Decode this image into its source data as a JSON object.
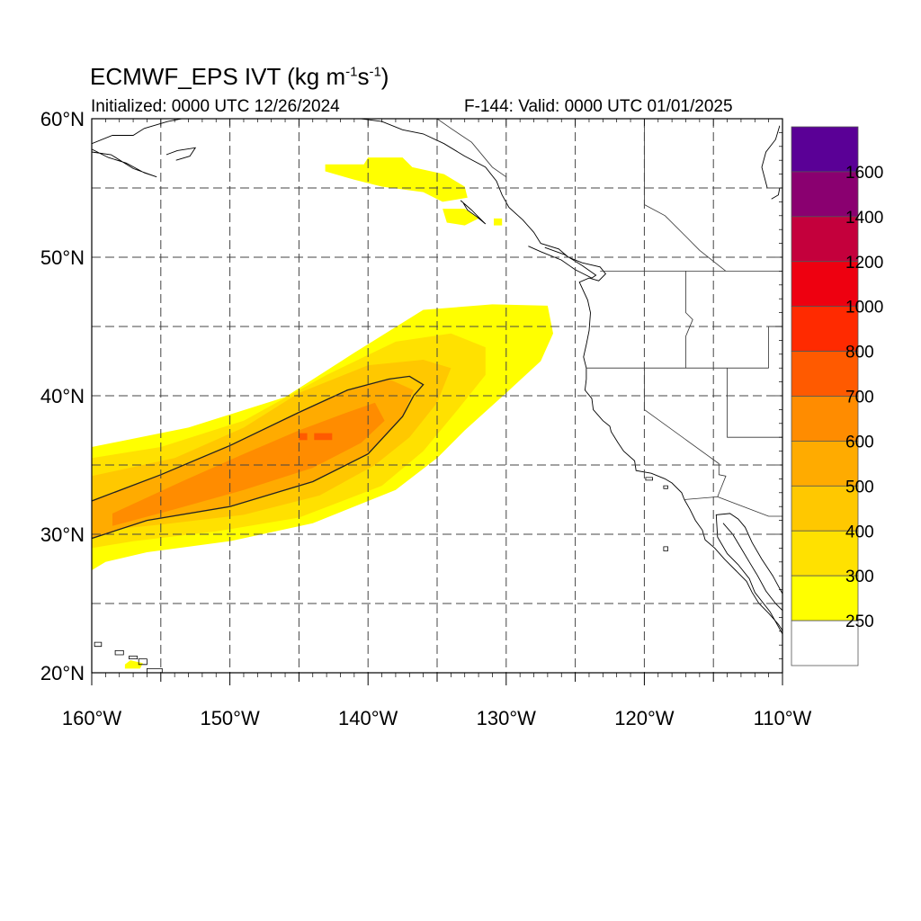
{
  "title": {
    "main": "ECMWF_EPS IVT (kg m",
    "unit_exp1": "-1",
    "unit_mid": "s",
    "unit_exp2": "-1",
    "unit_end": ")"
  },
  "subtitle_left": "Initialized: 0000 UTC 12/26/2024",
  "subtitle_right": "F-144: Valid: 0000 UTC 01/01/2025",
  "map": {
    "lon_range": [
      -160,
      -110
    ],
    "lat_range": [
      20,
      60
    ],
    "lon_tick_labels": [
      "160°W",
      "150°W",
      "140°W",
      "130°W",
      "120°W",
      "110°W"
    ],
    "lat_tick_labels": [
      "20°N",
      "30°N",
      "40°N",
      "50°N",
      "60°N"
    ],
    "grid_style": "dashed",
    "contour_level": 500
  },
  "colorbar": {
    "labels": [
      "250",
      "300",
      "400",
      "500",
      "600",
      "700",
      "800",
      "1000",
      "1200",
      "1400",
      "1600"
    ],
    "colors": [
      "#ffffff",
      "#ffff00",
      "#ffe100",
      "#ffc800",
      "#ffab00",
      "#ff8c00",
      "#ff5a00",
      "#ff2a00",
      "#ee0010",
      "#c4003c",
      "#8a0070",
      "#5a0096"
    ]
  },
  "ivt_plumes": [
    {
      "level": 250,
      "color": "#ffff00",
      "outline": [
        [
          -160,
          36.3
        ],
        [
          -153,
          37.7
        ],
        [
          -146,
          39.9
        ],
        [
          -141,
          43.1
        ],
        [
          -136,
          46.2
        ],
        [
          -131,
          46.6
        ],
        [
          -127,
          46.5
        ],
        [
          -126.6,
          44.5
        ],
        [
          -127.5,
          42.5
        ],
        [
          -130,
          40.2
        ],
        [
          -133,
          37.5
        ],
        [
          -135,
          35.5
        ],
        [
          -138,
          33.2
        ],
        [
          -144,
          30.8
        ],
        [
          -150,
          29.5
        ],
        [
          -156,
          28.7
        ],
        [
          -159,
          28
        ],
        [
          -160,
          27.4
        ]
      ]
    },
    {
      "level": 300,
      "color": "#ffe100",
      "outline": [
        [
          -160,
          35.5
        ],
        [
          -155,
          36.3
        ],
        [
          -149,
          38.2
        ],
        [
          -143,
          41.5
        ],
        [
          -138,
          43.9
        ],
        [
          -134,
          44.5
        ],
        [
          -131.5,
          43.5
        ],
        [
          -131.5,
          41.5
        ],
        [
          -133.5,
          39
        ],
        [
          -136,
          36
        ],
        [
          -139,
          33.5
        ],
        [
          -145,
          31.2
        ],
        [
          -151,
          30.2
        ],
        [
          -157,
          29.5
        ],
        [
          -160,
          29
        ]
      ]
    },
    {
      "level": 400,
      "color": "#ffc800",
      "outline": [
        [
          -160,
          34.2
        ],
        [
          -154,
          35.5
        ],
        [
          -149,
          37.7
        ],
        [
          -145,
          40.2
        ],
        [
          -140,
          42.2
        ],
        [
          -136,
          42.6
        ],
        [
          -134,
          42
        ],
        [
          -135,
          39.5
        ],
        [
          -137,
          37
        ],
        [
          -139.5,
          35
        ],
        [
          -143.5,
          32.8
        ],
        [
          -149,
          31.4
        ],
        [
          -155,
          30.7
        ],
        [
          -160,
          30.2
        ]
      ]
    },
    {
      "level": 500,
      "color": "#ffab00",
      "outline": [
        [
          -160,
          32.4
        ],
        [
          -155,
          34.3
        ],
        [
          -150,
          36.4
        ],
        [
          -145,
          38.8
        ],
        [
          -141.5,
          40.4
        ],
        [
          -138.5,
          41.2
        ],
        [
          -136.7,
          40.4
        ],
        [
          -137.5,
          38.5
        ],
        [
          -140,
          35.8
        ],
        [
          -144,
          33.8
        ],
        [
          -150,
          32
        ],
        [
          -156,
          31
        ],
        [
          -160,
          29.7
        ]
      ]
    },
    {
      "level": 600,
      "color": "#ff8c00",
      "outline": [
        [
          -158.5,
          31.5
        ],
        [
          -153.5,
          33.8
        ],
        [
          -149,
          35.8
        ],
        [
          -145,
          37.5
        ],
        [
          -141.5,
          38.8
        ],
        [
          -139.5,
          39.5
        ],
        [
          -138.8,
          38.2
        ],
        [
          -140.5,
          36.6
        ],
        [
          -144,
          34.8
        ],
        [
          -149,
          33.2
        ],
        [
          -154,
          31.8
        ],
        [
          -158.5,
          30.6
        ]
      ]
    },
    {
      "level": 700,
      "color": "#ff5a00",
      "outline": [
        [
          -145,
          37.3
        ],
        [
          -144.4,
          37.3
        ],
        [
          -144.4,
          36.8
        ],
        [
          -145,
          36.8
        ]
      ]
    },
    {
      "level": 700,
      "color": "#ff5a00",
      "outline": [
        [
          -143.9,
          37.3
        ],
        [
          -142.6,
          37.3
        ],
        [
          -142.6,
          36.8
        ],
        [
          -143.9,
          36.8
        ]
      ]
    },
    {
      "level": 250,
      "color": "#ffff00",
      "outline": [
        [
          -143.1,
          56.7
        ],
        [
          -140.3,
          56.7
        ],
        [
          -140,
          57.2
        ],
        [
          -137.5,
          57.2
        ],
        [
          -136.8,
          56.5
        ],
        [
          -134.5,
          56
        ],
        [
          -133,
          55.1
        ],
        [
          -132.8,
          54.3
        ],
        [
          -134.6,
          54
        ],
        [
          -136,
          54.7
        ],
        [
          -139,
          55.1
        ],
        [
          -141,
          55.6
        ],
        [
          -143.1,
          56.2
        ]
      ]
    },
    {
      "level": 250,
      "color": "#ffff00",
      "outline": [
        [
          -134.6,
          53.5
        ],
        [
          -133,
          53.5
        ],
        [
          -132,
          52.8
        ],
        [
          -133,
          52.3
        ],
        [
          -134.3,
          52.5
        ]
      ]
    },
    {
      "level": 250,
      "color": "#ffff00",
      "outline": [
        [
          -130.9,
          52.8
        ],
        [
          -130.3,
          52.8
        ],
        [
          -130.3,
          52.3
        ],
        [
          -130.9,
          52.3
        ]
      ]
    },
    {
      "level": 250,
      "color": "#ffff00",
      "outline": [
        [
          -157.6,
          20.3
        ],
        [
          -156.5,
          20.3
        ],
        [
          -156.3,
          20.7
        ],
        [
          -157.2,
          20.9
        ],
        [
          -157.6,
          20.6
        ]
      ]
    }
  ],
  "contour_500": [
    [
      -160,
      32.4
    ],
    [
      -155,
      34.3
    ],
    [
      -150,
      36.4
    ],
    [
      -145,
      38.8
    ],
    [
      -141.5,
      40.4
    ],
    [
      -138.5,
      41.2
    ],
    [
      -137,
      41.4
    ],
    [
      -136,
      40.8
    ],
    [
      -136.7,
      40
    ],
    [
      -137.5,
      38.5
    ],
    [
      -140,
      35.8
    ],
    [
      -144,
      33.8
    ],
    [
      -150,
      32
    ],
    [
      -156,
      31
    ],
    [
      -160,
      29.7
    ]
  ],
  "coastline": [
    [
      [
        -110,
        22.8
      ],
      [
        -110.9,
        24.4
      ],
      [
        -112,
        25.8
      ],
      [
        -112.4,
        26.8
      ],
      [
        -113.2,
        27.8
      ],
      [
        -114,
        28.6
      ],
      [
        -114.7,
        29.8
      ],
      [
        -114.8,
        31.4
      ],
      [
        -113.8,
        31.5
      ],
      [
        -113.2,
        31.1
      ],
      [
        -112.7,
        30.5
      ],
      [
        -112.2,
        29.4
      ],
      [
        -111.5,
        28.2
      ],
      [
        -110.7,
        27
      ],
      [
        -110,
        25.7
      ]
    ],
    [
      [
        -110,
        23.2
      ],
      [
        -109.5,
        23.8
      ],
      [
        -109.9,
        24.4
      ],
      [
        -110.5,
        25
      ],
      [
        -111.2,
        25.9
      ],
      [
        -111.8,
        27
      ],
      [
        -112.4,
        28
      ],
      [
        -113,
        29
      ],
      [
        -113.6,
        30
      ],
      [
        -114.3,
        30.8
      ]
    ],
    [
      [
        -117.1,
        32.5
      ],
      [
        -117.3,
        33
      ],
      [
        -118,
        33.7
      ],
      [
        -118.5,
        34
      ],
      [
        -119.5,
        34.4
      ],
      [
        -120.6,
        34.6
      ],
      [
        -120.7,
        35.3
      ],
      [
        -121.5,
        36
      ],
      [
        -121.9,
        36.6
      ],
      [
        -122.4,
        37.4
      ],
      [
        -122.5,
        37.8
      ],
      [
        -123,
        38.2
      ],
      [
        -123.7,
        39
      ],
      [
        -123.8,
        39.8
      ],
      [
        -124.3,
        40.4
      ],
      [
        -124.2,
        41.2
      ],
      [
        -124.2,
        42
      ],
      [
        -124.4,
        42.8
      ],
      [
        -124.2,
        43.7
      ],
      [
        -124,
        44.7
      ],
      [
        -123.9,
        46
      ],
      [
        -124.1,
        46.9
      ],
      [
        -124.7,
        48.2
      ],
      [
        -124,
        48.5
      ],
      [
        -123.3,
        48.3
      ],
      [
        -122.8,
        48.8
      ],
      [
        -123.2,
        49.3
      ],
      [
        -124.5,
        49.6
      ],
      [
        -125.5,
        50
      ],
      [
        -126.2,
        50.6
      ],
      [
        -127.5,
        51
      ],
      [
        -128,
        51.8
      ],
      [
        -128.8,
        52.7
      ],
      [
        -129.8,
        53.6
      ],
      [
        -130.3,
        54.5
      ],
      [
        -130.7,
        55.5
      ],
      [
        -131.5,
        56.5
      ],
      [
        -133,
        57.3
      ],
      [
        -134.5,
        58.2
      ],
      [
        -136,
        58.9
      ],
      [
        -137.5,
        59.2
      ],
      [
        -139,
        59.8
      ],
      [
        -140.5,
        60
      ]
    ],
    [
      [
        -117.1,
        32.5
      ],
      [
        -116.7,
        31.8
      ],
      [
        -116.3,
        31
      ],
      [
        -115.8,
        30.3
      ],
      [
        -115.6,
        29.6
      ],
      [
        -114.9,
        29
      ],
      [
        -114.2,
        28.2
      ],
      [
        -113.4,
        27.4
      ],
      [
        -112.6,
        26.6
      ],
      [
        -112.2,
        25.8
      ],
      [
        -111.7,
        25
      ],
      [
        -111,
        24.3
      ],
      [
        -110.3,
        23.5
      ],
      [
        -109.9,
        22.9
      ]
    ],
    [
      [
        -160,
        58.2
      ],
      [
        -158.5,
        58.8
      ],
      [
        -157,
        58.8
      ],
      [
        -156.2,
        59.3
      ],
      [
        -154.5,
        59.8
      ],
      [
        -153.5,
        60
      ]
    ],
    [
      [
        -160,
        57.8
      ],
      [
        -158.8,
        57.2
      ],
      [
        -157.5,
        56.8
      ],
      [
        -156.2,
        56.1
      ],
      [
        -155.3,
        55.8
      ],
      [
        -157,
        56.4
      ],
      [
        -158.6,
        57.4
      ],
      [
        -160,
        57.6
      ]
    ],
    [
      [
        -154.6,
        57.4
      ],
      [
        -153.8,
        57.7
      ],
      [
        -152.5,
        57.9
      ],
      [
        -152.9,
        57.3
      ],
      [
        -153.9,
        57
      ]
    ],
    [
      [
        -133.3,
        54.1
      ],
      [
        -132.5,
        53.4
      ],
      [
        -131.9,
        52.8
      ],
      [
        -131.5,
        52.4
      ],
      [
        -132.1,
        52.9
      ],
      [
        -132.8,
        53.4
      ],
      [
        -133.1,
        53.9
      ]
    ],
    [
      [
        -128.4,
        50.8
      ],
      [
        -127.5,
        50.4
      ],
      [
        -126,
        49.8
      ],
      [
        -125,
        49.1
      ],
      [
        -123.8,
        48.5
      ],
      [
        -123.5,
        48.7
      ],
      [
        -124.5,
        49.4
      ],
      [
        -125.8,
        50.2
      ],
      [
        -127.2,
        50.7
      ]
    ],
    [
      [
        -111.1,
        55
      ],
      [
        -111.5,
        56.5
      ],
      [
        -111.2,
        57.6
      ],
      [
        -110.5,
        58.5
      ],
      [
        -110.2,
        59.5
      ]
    ],
    [
      [
        -110.8,
        54.2
      ],
      [
        -110.3,
        54.5
      ],
      [
        -110.2,
        55
      ]
    ]
  ],
  "islands": [
    [
      [
        -159.8,
        22.2
      ],
      [
        -159.3,
        22.2
      ],
      [
        -159.3,
        21.9
      ],
      [
        -159.8,
        21.9
      ]
    ],
    [
      [
        -158.3,
        21.6
      ],
      [
        -157.7,
        21.6
      ],
      [
        -157.7,
        21.3
      ],
      [
        -158.3,
        21.3
      ]
    ],
    [
      [
        -157.3,
        21.2
      ],
      [
        -156.7,
        21.2
      ],
      [
        -156.7,
        21
      ],
      [
        -157.3,
        21
      ]
    ],
    [
      [
        -156.6,
        21
      ],
      [
        -156,
        21
      ],
      [
        -156,
        20.6
      ],
      [
        -156.6,
        20.6
      ]
    ],
    [
      [
        -156,
        20.3
      ],
      [
        -154.9,
        20.3
      ],
      [
        -154.9,
        19.6
      ],
      [
        -156,
        19.6
      ]
    ],
    [
      [
        -118.6,
        29.1
      ],
      [
        -118.3,
        29.1
      ],
      [
        -118.3,
        28.8
      ],
      [
        -118.6,
        28.8
      ]
    ],
    [
      [
        -119.9,
        34.1
      ],
      [
        -119.4,
        34.1
      ],
      [
        -119.4,
        33.9
      ],
      [
        -119.9,
        33.9
      ]
    ],
    [
      [
        -118.6,
        33.5
      ],
      [
        -118.3,
        33.5
      ],
      [
        -118.3,
        33.3
      ],
      [
        -118.6,
        33.3
      ]
    ]
  ],
  "political": [
    [
      [
        -123.2,
        49
      ],
      [
        -110,
        49
      ]
    ],
    [
      [
        -124.2,
        42
      ],
      [
        -111,
        42
      ]
    ],
    [
      [
        -117,
        49
      ],
      [
        -117,
        46
      ],
      [
        -116.5,
        45.5
      ],
      [
        -117,
        44.3
      ],
      [
        -117,
        42
      ]
    ],
    [
      [
        -120,
        42
      ],
      [
        -120,
        39
      ],
      [
        -114.6,
        35.1
      ],
      [
        -114.6,
        34.3
      ],
      [
        -114.1,
        34.2
      ],
      [
        -114.7,
        32.7
      ]
    ],
    [
      [
        -114.7,
        32.7
      ],
      [
        -117.1,
        32.5
      ]
    ],
    [
      [
        -114.7,
        32.7
      ],
      [
        -111,
        31.3
      ],
      [
        -110,
        31.3
      ]
    ],
    [
      [
        -114,
        42
      ],
      [
        -114,
        37
      ],
      [
        -110,
        37
      ]
    ],
    [
      [
        -111,
        42
      ],
      [
        -111,
        45
      ],
      [
        -110,
        45
      ]
    ],
    [
      [
        -120,
        60
      ],
      [
        -120,
        53.8
      ],
      [
        -118.5,
        53
      ],
      [
        -117,
        51.5
      ],
      [
        -116,
        50.5
      ],
      [
        -114.1,
        49
      ]
    ],
    [
      [
        -135,
        60
      ],
      [
        -134,
        59.3
      ],
      [
        -132.5,
        58.3
      ],
      [
        -131,
        56.5
      ],
      [
        -130,
        55.8
      ]
    ]
  ]
}
